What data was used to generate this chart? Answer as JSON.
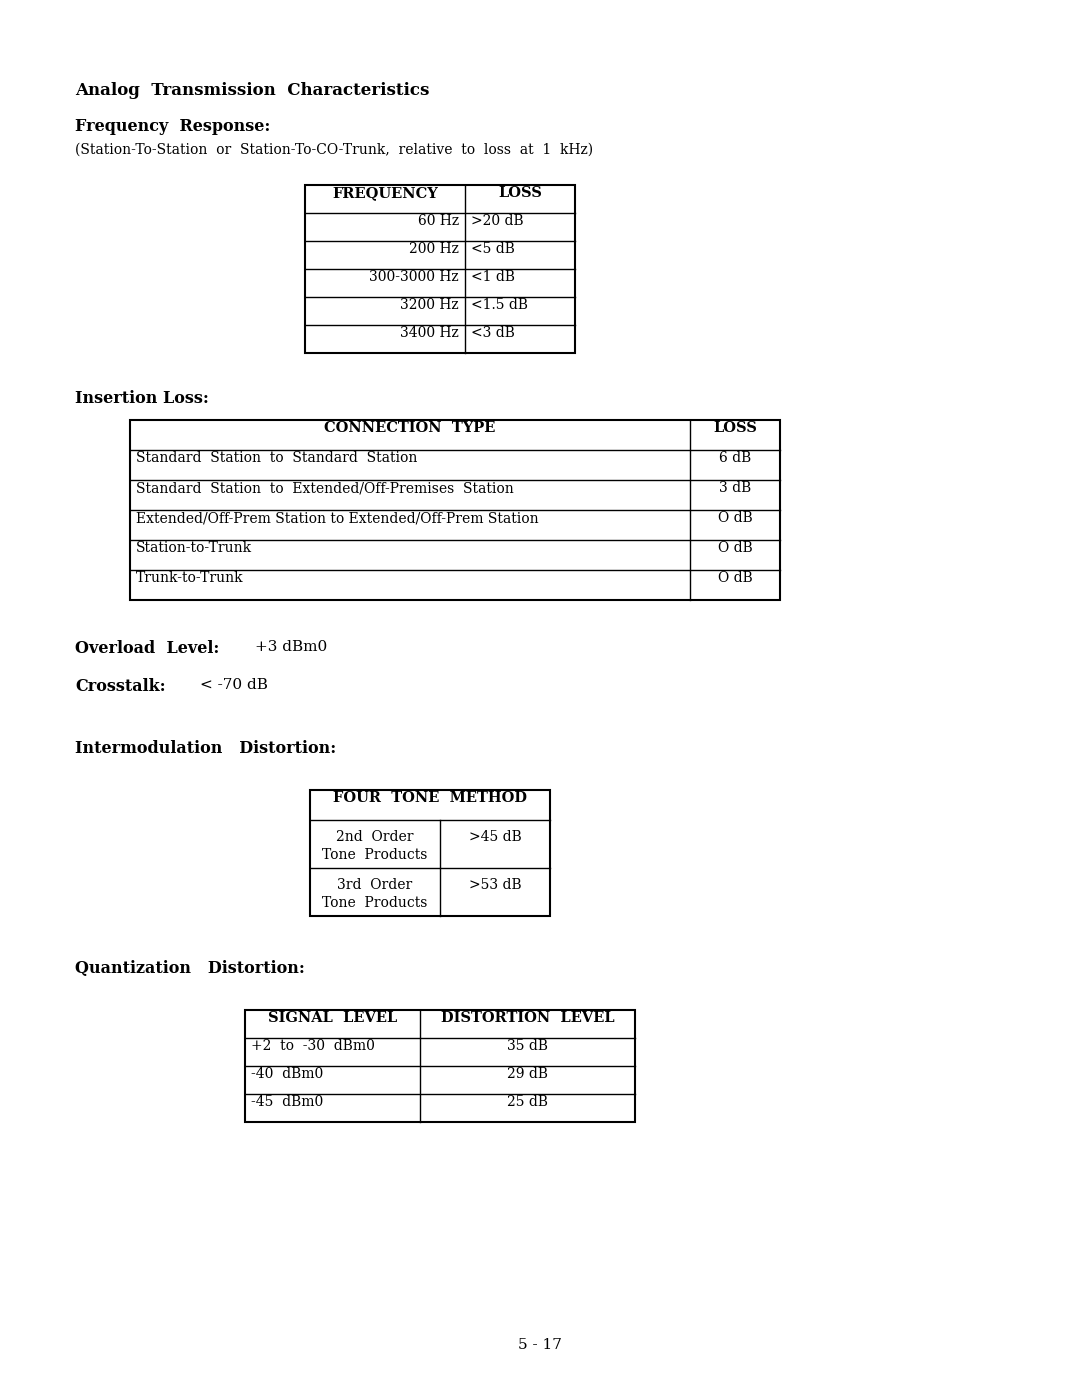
{
  "title": "Analog  Transmission  Characteristics",
  "freq_response_label": "Frequency  Response:",
  "freq_response_subtitle": "(Station-To-Station  or  Station-To-CO-Trunk,  relative  to  loss  at  1  kHz)",
  "freq_table_headers": [
    "FREQUENCY",
    "LOSS"
  ],
  "freq_table_rows": [
    [
      "60 Hz",
      ">20 dB"
    ],
    [
      "200 Hz",
      "<5 dB"
    ],
    [
      "300-3000 Hz",
      "<1 dB"
    ],
    [
      "3200 Hz",
      "<1.5 dB"
    ],
    [
      "3400 Hz",
      "<3 dB"
    ]
  ],
  "insertion_loss_label": "Insertion Loss:",
  "insertion_table_col1_header": "CONNECTION  TYPE",
  "insertion_table_col2_header": "LOSS",
  "insertion_table_rows": [
    [
      "Standard  Station  to  Standard  Station",
      "6 dB"
    ],
    [
      "Standard  Station  to  Extended/Off-Premises  Station",
      "3 dB"
    ],
    [
      "Extended/Off-Prem Station to Extended/Off-Prem Station",
      "O dB"
    ],
    [
      "Station-to-Trunk",
      "O dB"
    ],
    [
      "Trunk-to-Trunk",
      "O dB"
    ]
  ],
  "overload_label": "Overload  Level:",
  "overload_value": "+3 dBm0",
  "crosstalk_label": "Crosstalk:",
  "crosstalk_value": "< -70 dB",
  "intermod_label": "Intermodulation   Distortion:",
  "four_tone_header": "FOUR  TONE  METHOD",
  "four_tone_row1_left": "2nd  Order",
  "four_tone_row1_left2": "Tone  Products",
  "four_tone_row1_right": ">45 dB",
  "four_tone_row2_left": "3rd  Order",
  "four_tone_row2_left2": "Tone  Products",
  "four_tone_row2_right": ">53 dB",
  "quant_label": "Quantization   Distortion:",
  "signal_table_col1_header": "SIGNAL  LEVEL",
  "signal_table_col2_header": "DISTORTION  LEVEL",
  "signal_table_rows": [
    [
      "+2  to  -30  dBm0",
      "35 dB"
    ],
    [
      "-40  dBm0",
      "29 dB"
    ],
    [
      "-45  dBm0",
      "25 dB"
    ]
  ],
  "page_number": "5 - 17",
  "bg_color": "#ffffff",
  "text_color": "#000000"
}
